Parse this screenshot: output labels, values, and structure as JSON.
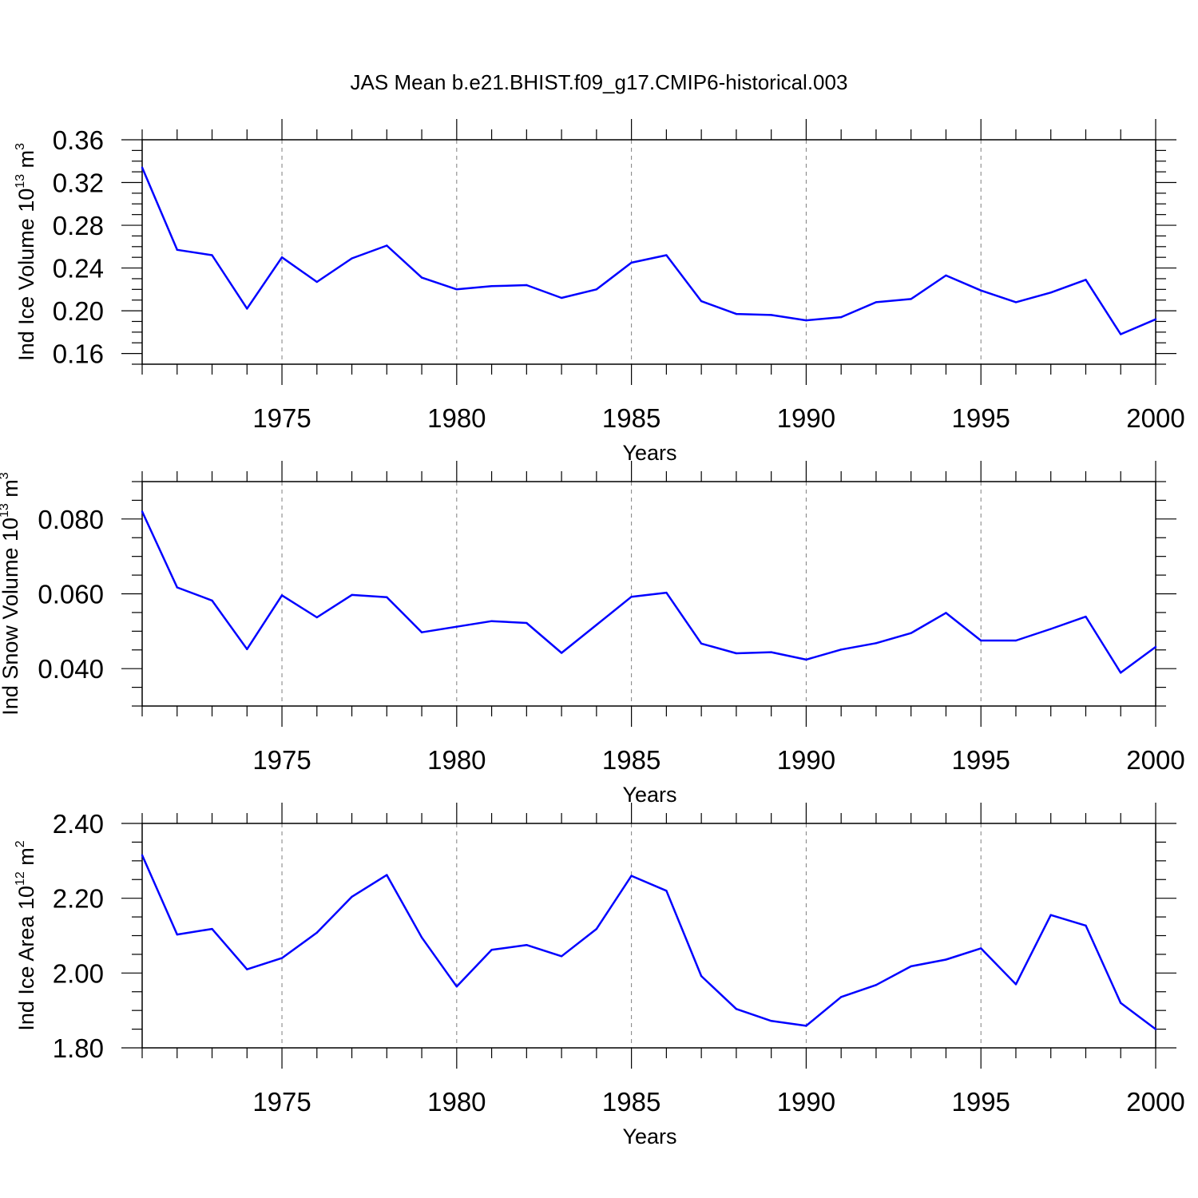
{
  "title": "JAS Mean b.e21.BHIST.f09_g17.CMIP6-historical.003",
  "colors": {
    "line": "#0000ff",
    "axis": "#000000",
    "grid": "#7f7f7f"
  },
  "chart_data": [
    {
      "type": "line",
      "ylabel": {
        "text": "Ind Ice Volume 10",
        "sup": "13",
        "unit_text": " m",
        "unit_sup": "3"
      },
      "xlabel": "Years",
      "xlim": [
        1971,
        2000
      ],
      "ylim": [
        0.15,
        0.36
      ],
      "yticks": [
        0.16,
        0.2,
        0.24,
        0.28,
        0.32,
        0.36
      ],
      "ytick_labels": [
        "0.16",
        "0.20",
        "0.24",
        "0.28",
        "0.32",
        "0.36"
      ],
      "yminor_step": 0.01,
      "xticks": [
        1975,
        1980,
        1985,
        1990,
        1995,
        2000
      ],
      "xtick_labels": [
        "1975",
        "1980",
        "1985",
        "1990",
        "1995",
        "2000"
      ],
      "grid": "x-dashed",
      "x": [
        1971,
        1972,
        1973,
        1974,
        1975,
        1976,
        1977,
        1978,
        1979,
        1980,
        1981,
        1982,
        1983,
        1984,
        1985,
        1986,
        1987,
        1988,
        1989,
        1990,
        1991,
        1992,
        1993,
        1994,
        1995,
        1996,
        1997,
        1998,
        1999,
        2000
      ],
      "values": [
        0.334,
        0.257,
        0.252,
        0.202,
        0.25,
        0.227,
        0.249,
        0.261,
        0.231,
        0.22,
        0.223,
        0.224,
        0.212,
        0.22,
        0.245,
        0.252,
        0.209,
        0.197,
        0.196,
        0.191,
        0.194,
        0.208,
        0.211,
        0.233,
        0.219,
        0.208,
        0.217,
        0.229,
        0.178,
        0.192
      ]
    },
    {
      "type": "line",
      "ylabel": {
        "text": "Ind Snow Volume 10",
        "sup": "13",
        "unit_text": " m",
        "unit_sup": "3"
      },
      "xlabel": "Years",
      "xlim": [
        1971,
        2000
      ],
      "ylim": [
        0.03,
        0.09
      ],
      "yticks": [
        0.04,
        0.06,
        0.08
      ],
      "ytick_labels": [
        "0.040",
        "0.060",
        "0.080"
      ],
      "yminor_step": 0.005,
      "xticks": [
        1975,
        1980,
        1985,
        1990,
        1995,
        2000
      ],
      "xtick_labels": [
        "1975",
        "1980",
        "1985",
        "1990",
        "1995",
        "2000"
      ],
      "grid": "x-dashed",
      "x": [
        1971,
        1972,
        1973,
        1974,
        1975,
        1976,
        1977,
        1978,
        1979,
        1980,
        1981,
        1982,
        1983,
        1984,
        1985,
        1986,
        1987,
        1988,
        1989,
        1990,
        1991,
        1992,
        1993,
        1994,
        1995,
        1996,
        1997,
        1998,
        1999,
        2000
      ],
      "values": [
        0.082,
        0.0617,
        0.0582,
        0.0452,
        0.0596,
        0.0537,
        0.0597,
        0.0591,
        0.0497,
        0.0512,
        0.0527,
        0.0522,
        0.0442,
        0.0517,
        0.0592,
        0.0603,
        0.0467,
        0.0441,
        0.0444,
        0.0424,
        0.0451,
        0.0468,
        0.0495,
        0.0549,
        0.0475,
        0.0475,
        0.0506,
        0.0539,
        0.0389,
        0.0458
      ]
    },
    {
      "type": "line",
      "ylabel": {
        "text": "Ind Ice Area 10",
        "sup": "12",
        "unit_text": " m",
        "unit_sup": "2"
      },
      "xlabel": "Years",
      "xlim": [
        1971,
        2000
      ],
      "ylim": [
        1.8,
        2.4
      ],
      "yticks": [
        1.8,
        2.0,
        2.2,
        2.4
      ],
      "ytick_labels": [
        "1.80",
        "2.00",
        "2.20",
        "2.40"
      ],
      "yminor_step": 0.05,
      "xticks": [
        1975,
        1980,
        1985,
        1990,
        1995,
        2000
      ],
      "xtick_labels": [
        "1975",
        "1980",
        "1985",
        "1990",
        "1995",
        "2000"
      ],
      "grid": "x-dashed",
      "x": [
        1971,
        1972,
        1973,
        1974,
        1975,
        1976,
        1977,
        1978,
        1979,
        1980,
        1981,
        1982,
        1983,
        1984,
        1985,
        1986,
        1987,
        1988,
        1989,
        1990,
        1991,
        1992,
        1993,
        1994,
        1995,
        1996,
        1997,
        1998,
        1999,
        2000
      ],
      "values": [
        2.315,
        2.103,
        2.118,
        2.01,
        2.04,
        2.108,
        2.204,
        2.262,
        2.095,
        1.964,
        2.062,
        2.075,
        2.045,
        2.118,
        2.26,
        2.22,
        1.992,
        1.904,
        1.872,
        1.859,
        1.936,
        1.968,
        2.018,
        2.036,
        2.066,
        1.97,
        2.155,
        2.127,
        1.92,
        1.85
      ]
    }
  ]
}
